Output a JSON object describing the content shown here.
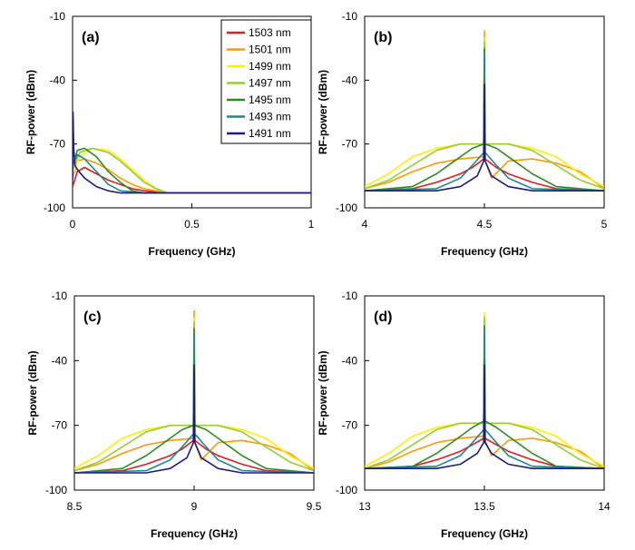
{
  "chart_data": [
    {
      "id": "a",
      "type": "line",
      "panel_label": "(a)",
      "xlabel": "Frequency (GHz)",
      "ylabel": "RF-power (dBm)",
      "xlim": [
        0,
        1
      ],
      "ylim": [
        -100,
        -10
      ],
      "xticks": [
        "0",
        "0.5",
        "1"
      ],
      "yticks": [
        "-10",
        "-40",
        "-70",
        "-100"
      ],
      "grid": false,
      "legend": "top-right",
      "series": [
        {
          "name": "1503 nm",
          "color": "#e41a1c",
          "x": [
            0,
            0.02,
            0.05,
            0.1,
            0.15,
            0.2,
            0.25,
            0.3,
            0.4,
            0.5,
            0.7,
            1.0
          ],
          "y": [
            -90,
            -83,
            -81,
            -84,
            -87,
            -89,
            -91,
            -92,
            -93,
            -93,
            -93,
            -93
          ]
        },
        {
          "name": "1501 nm",
          "color": "#ff9900",
          "x": [
            0,
            0.02,
            0.05,
            0.1,
            0.15,
            0.2,
            0.25,
            0.3,
            0.4,
            0.5,
            0.7,
            1.0
          ],
          "y": [
            -86,
            -78,
            -77,
            -79,
            -82,
            -86,
            -89,
            -91,
            -93,
            -93,
            -93,
            -93
          ]
        },
        {
          "name": "1499 nm",
          "color": "#ffee00",
          "x": [
            0,
            0.03,
            0.08,
            0.15,
            0.2,
            0.25,
            0.3,
            0.35,
            0.4,
            0.5,
            0.7,
            1.0
          ],
          "y": [
            -84,
            -76,
            -72,
            -73,
            -77,
            -82,
            -87,
            -91,
            -93,
            -93,
            -93,
            -93
          ]
        },
        {
          "name": "1497 nm",
          "color": "#99cc33",
          "x": [
            0,
            0.03,
            0.08,
            0.15,
            0.2,
            0.25,
            0.3,
            0.35,
            0.4,
            0.5,
            0.7,
            1.0
          ],
          "y": [
            -82,
            -74,
            -72,
            -74,
            -78,
            -83,
            -88,
            -91,
            -93,
            -93,
            -93,
            -93
          ]
        },
        {
          "name": "1495 nm",
          "color": "#2e8b22",
          "x": [
            0,
            0.02,
            0.05,
            0.1,
            0.15,
            0.2,
            0.25,
            0.3,
            0.4,
            0.5,
            0.7,
            1.0
          ],
          "y": [
            -80,
            -73,
            -72,
            -76,
            -83,
            -88,
            -92,
            -93,
            -93,
            -93,
            -93,
            -93
          ]
        },
        {
          "name": "1493 nm",
          "color": "#1a8a8a",
          "x": [
            0,
            0.02,
            0.05,
            0.1,
            0.15,
            0.2,
            0.3,
            0.4,
            0.5,
            0.7,
            1.0
          ],
          "y": [
            -80,
            -75,
            -77,
            -83,
            -89,
            -92,
            -93,
            -93,
            -93,
            -93,
            -93
          ]
        },
        {
          "name": "1491 nm",
          "color": "#1c1c80",
          "x": [
            0,
            0.002,
            0.005,
            0.01,
            0.02,
            0.05,
            0.1,
            0.15,
            0.2,
            0.3,
            0.5,
            0.7,
            1.0
          ],
          "y": [
            -87,
            -55,
            -72,
            -80,
            -82,
            -86,
            -90,
            -92,
            -93,
            -93,
            -93,
            -93,
            -93
          ]
        }
      ]
    },
    {
      "id": "b",
      "type": "line",
      "panel_label": "(b)",
      "xlabel": "Frequency (GHz)",
      "ylabel": "RF-power (dBm)",
      "xlim": [
        4,
        5
      ],
      "ylim": [
        -100,
        -10
      ],
      "xticks": [
        "4",
        "4.5",
        "5"
      ],
      "yticks": [
        "-10",
        "-40",
        "-70",
        "-100"
      ],
      "grid": false,
      "series": [
        {
          "name": "1503 nm",
          "color": "#e41a1c",
          "x": [
            4.0,
            4.2,
            4.3,
            4.4,
            4.45,
            4.497,
            4.5,
            4.503,
            4.55,
            4.6,
            4.7,
            4.8,
            5.0
          ],
          "y": [
            -92,
            -91,
            -88,
            -84,
            -81,
            -77,
            -25,
            -77,
            -81,
            -84,
            -88,
            -91,
            -92
          ]
        },
        {
          "name": "1501 nm",
          "color": "#ff9900",
          "x": [
            4.0,
            4.1,
            4.2,
            4.3,
            4.4,
            4.497,
            4.5,
            4.503,
            4.53,
            4.6,
            4.7,
            4.8,
            4.9,
            5.0
          ],
          "y": [
            -91,
            -88,
            -83,
            -79,
            -77,
            -76,
            -17,
            -78,
            -86,
            -78,
            -77,
            -79,
            -83,
            -91
          ]
        },
        {
          "name": "1499 nm",
          "color": "#ffee00",
          "x": [
            4.0,
            4.1,
            4.2,
            4.3,
            4.4,
            4.497,
            4.5,
            4.503,
            4.6,
            4.7,
            4.8,
            4.9,
            5.0
          ],
          "y": [
            -90,
            -84,
            -76,
            -72,
            -70,
            -70,
            -20,
            -70,
            -70,
            -72,
            -76,
            -84,
            -90
          ]
        },
        {
          "name": "1497 nm",
          "color": "#99cc33",
          "x": [
            4.0,
            4.1,
            4.2,
            4.3,
            4.4,
            4.497,
            4.5,
            4.503,
            4.6,
            4.7,
            4.8,
            4.9,
            5.0
          ],
          "y": [
            -91,
            -87,
            -80,
            -73,
            -70,
            -70,
            -22,
            -70,
            -70,
            -73,
            -80,
            -87,
            -91
          ]
        },
        {
          "name": "1495 nm",
          "color": "#2e8b22",
          "x": [
            4.0,
            4.2,
            4.3,
            4.4,
            4.45,
            4.497,
            4.5,
            4.503,
            4.55,
            4.6,
            4.7,
            4.8,
            5.0
          ],
          "y": [
            -92,
            -90,
            -84,
            -76,
            -72,
            -70,
            -25,
            -70,
            -72,
            -76,
            -84,
            -90,
            -92
          ]
        },
        {
          "name": "1493 nm",
          "color": "#1a8a8a",
          "x": [
            4.0,
            4.3,
            4.4,
            4.45,
            4.497,
            4.5,
            4.503,
            4.55,
            4.6,
            4.7,
            5.0
          ],
          "y": [
            -92,
            -91,
            -86,
            -80,
            -74,
            -28,
            -74,
            -80,
            -86,
            -91,
            -92
          ]
        },
        {
          "name": "1491 nm",
          "color": "#1c1c80",
          "x": [
            4.0,
            4.3,
            4.4,
            4.47,
            4.497,
            4.5,
            4.503,
            4.53,
            4.6,
            4.7,
            5.0
          ],
          "y": [
            -92,
            -92,
            -90,
            -85,
            -78,
            -42,
            -78,
            -85,
            -90,
            -92,
            -92
          ]
        }
      ]
    },
    {
      "id": "c",
      "type": "line",
      "panel_label": "(c)",
      "xlabel": "Frequency (GHz)",
      "ylabel": "RF-power (dBm)",
      "xlim": [
        8.5,
        9.5
      ],
      "ylim": [
        -100,
        -10
      ],
      "xticks": [
        "8.5",
        "9",
        "9.5"
      ],
      "yticks": [
        "-10",
        "-40",
        "-70",
        "-100"
      ],
      "grid": false,
      "series": [
        {
          "name": "1503 nm",
          "color": "#e41a1c",
          "x": [
            8.5,
            8.7,
            8.8,
            8.9,
            8.95,
            8.997,
            9.0,
            9.003,
            9.05,
            9.1,
            9.2,
            9.3,
            9.5
          ],
          "y": [
            -92,
            -91,
            -88,
            -84,
            -81,
            -77,
            -28,
            -77,
            -81,
            -84,
            -88,
            -91,
            -92
          ]
        },
        {
          "name": "1501 nm",
          "color": "#ff9900",
          "x": [
            8.5,
            8.6,
            8.7,
            8.8,
            8.9,
            8.997,
            9.0,
            9.003,
            9.03,
            9.1,
            9.2,
            9.3,
            9.4,
            9.5
          ],
          "y": [
            -91,
            -88,
            -83,
            -79,
            -77,
            -76,
            -17,
            -78,
            -86,
            -78,
            -77,
            -79,
            -83,
            -91
          ]
        },
        {
          "name": "1499 nm",
          "color": "#ffee00",
          "x": [
            8.5,
            8.6,
            8.7,
            8.8,
            8.9,
            8.997,
            9.0,
            9.003,
            9.1,
            9.2,
            9.3,
            9.4,
            9.5
          ],
          "y": [
            -90,
            -84,
            -76,
            -72,
            -70,
            -70,
            -20,
            -70,
            -70,
            -72,
            -76,
            -84,
            -90
          ]
        },
        {
          "name": "1497 nm",
          "color": "#99cc33",
          "x": [
            8.5,
            8.6,
            8.7,
            8.8,
            8.9,
            8.997,
            9.0,
            9.003,
            9.1,
            9.2,
            9.3,
            9.4,
            9.5
          ],
          "y": [
            -91,
            -87,
            -80,
            -73,
            -70,
            -70,
            -22,
            -70,
            -70,
            -73,
            -80,
            -87,
            -91
          ]
        },
        {
          "name": "1495 nm",
          "color": "#2e8b22",
          "x": [
            8.5,
            8.7,
            8.8,
            8.9,
            8.95,
            8.997,
            9.0,
            9.003,
            9.05,
            9.1,
            9.2,
            9.3,
            9.5
          ],
          "y": [
            -92,
            -90,
            -84,
            -76,
            -72,
            -70,
            -25,
            -70,
            -72,
            -76,
            -84,
            -90,
            -92
          ]
        },
        {
          "name": "1493 nm",
          "color": "#1a8a8a",
          "x": [
            8.5,
            8.8,
            8.9,
            8.95,
            8.997,
            9.0,
            9.003,
            9.05,
            9.1,
            9.2,
            9.5
          ],
          "y": [
            -92,
            -91,
            -86,
            -80,
            -74,
            -28,
            -74,
            -80,
            -86,
            -91,
            -92
          ]
        },
        {
          "name": "1491 nm",
          "color": "#1c1c80",
          "x": [
            8.5,
            8.8,
            8.9,
            8.97,
            8.997,
            9.0,
            9.003,
            9.03,
            9.1,
            9.2,
            9.5
          ],
          "y": [
            -92,
            -92,
            -90,
            -85,
            -78,
            -42,
            -78,
            -85,
            -90,
            -92,
            -92
          ]
        }
      ]
    },
    {
      "id": "d",
      "type": "line",
      "panel_label": "(d)",
      "xlabel": "Frequency (GHz)",
      "ylabel": "RF-power (dBm)",
      "xlim": [
        13,
        14
      ],
      "ylim": [
        -100,
        -10
      ],
      "xticks": [
        "13",
        "13.5",
        "14"
      ],
      "yticks": [
        "-10",
        "-40",
        "-70",
        "-100"
      ],
      "grid": false,
      "series": [
        {
          "name": "1503 nm",
          "color": "#e41a1c",
          "x": [
            13.0,
            13.2,
            13.3,
            13.4,
            13.45,
            13.497,
            13.5,
            13.503,
            13.55,
            13.6,
            13.7,
            13.8,
            14.0
          ],
          "y": [
            -90,
            -89,
            -86,
            -82,
            -79,
            -76,
            -25,
            -76,
            -79,
            -82,
            -86,
            -89,
            -90
          ]
        },
        {
          "name": "1501 nm",
          "color": "#ff9900",
          "x": [
            13.0,
            13.1,
            13.2,
            13.3,
            13.4,
            13.497,
            13.5,
            13.503,
            13.53,
            13.6,
            13.7,
            13.8,
            13.9,
            14.0
          ],
          "y": [
            -90,
            -87,
            -82,
            -78,
            -76,
            -75,
            -20,
            -77,
            -84,
            -77,
            -76,
            -78,
            -82,
            -90
          ]
        },
        {
          "name": "1499 nm",
          "color": "#ffee00",
          "x": [
            13.0,
            13.1,
            13.2,
            13.3,
            13.4,
            13.497,
            13.5,
            13.503,
            13.6,
            13.7,
            13.8,
            13.9,
            14.0
          ],
          "y": [
            -89,
            -83,
            -75,
            -71,
            -69,
            -69,
            -18,
            -69,
            -69,
            -71,
            -75,
            -83,
            -89
          ]
        },
        {
          "name": "1497 nm",
          "color": "#99cc33",
          "x": [
            13.0,
            13.1,
            13.2,
            13.3,
            13.4,
            13.497,
            13.5,
            13.503,
            13.6,
            13.7,
            13.8,
            13.9,
            14.0
          ],
          "y": [
            -90,
            -86,
            -79,
            -72,
            -69,
            -69,
            -20,
            -69,
            -69,
            -72,
            -79,
            -86,
            -90
          ]
        },
        {
          "name": "1495 nm",
          "color": "#2e8b22",
          "x": [
            13.0,
            13.2,
            13.3,
            13.4,
            13.45,
            13.497,
            13.5,
            13.503,
            13.55,
            13.6,
            13.7,
            13.8,
            14.0
          ],
          "y": [
            -90,
            -89,
            -83,
            -75,
            -71,
            -68,
            -24,
            -68,
            -71,
            -75,
            -83,
            -89,
            -90
          ]
        },
        {
          "name": "1493 nm",
          "color": "#1a8a8a",
          "x": [
            13.0,
            13.3,
            13.4,
            13.45,
            13.497,
            13.5,
            13.503,
            13.55,
            13.6,
            13.7,
            14.0
          ],
          "y": [
            -90,
            -89,
            -84,
            -78,
            -72,
            -26,
            -72,
            -78,
            -84,
            -89,
            -90
          ]
        },
        {
          "name": "1491 nm",
          "color": "#1c1c80",
          "x": [
            13.0,
            13.3,
            13.4,
            13.47,
            13.497,
            13.5,
            13.503,
            13.53,
            13.6,
            13.7,
            14.0
          ],
          "y": [
            -90,
            -90,
            -88,
            -83,
            -78,
            -42,
            -78,
            -83,
            -88,
            -90,
            -90
          ]
        }
      ]
    }
  ]
}
